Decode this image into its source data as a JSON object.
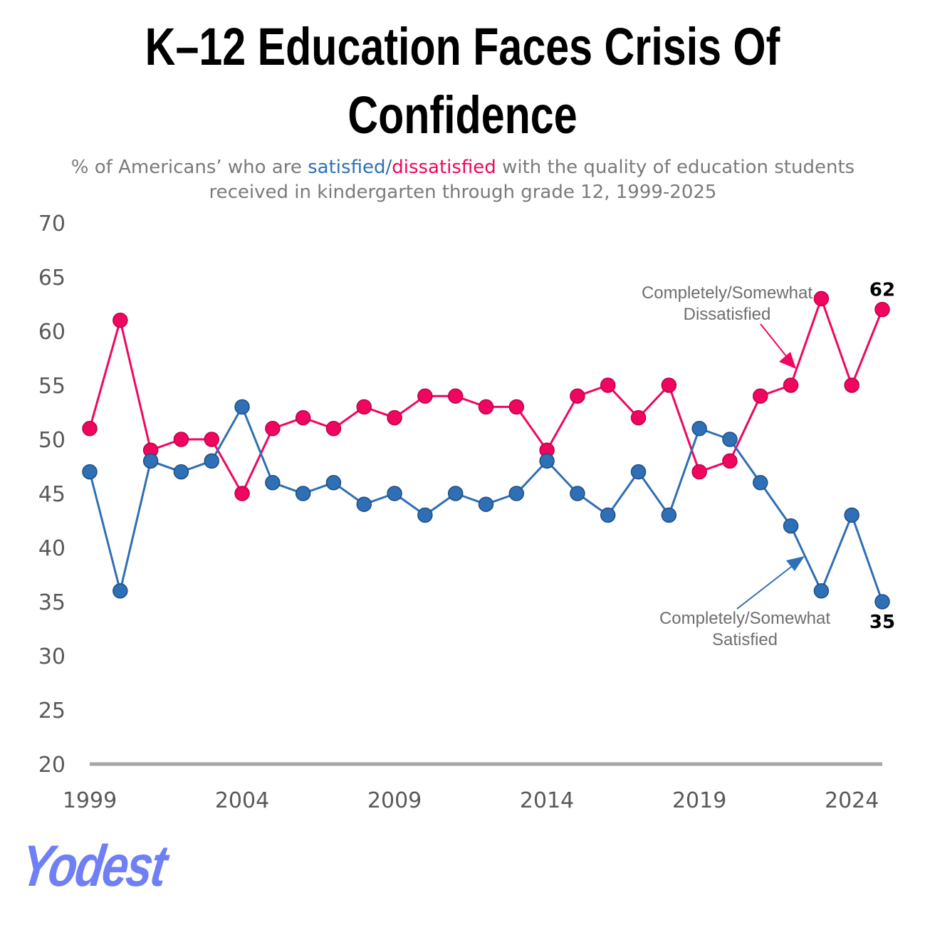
{
  "title": "K–12 Education Faces Crisis Of Confidence",
  "subtitle": {
    "prefix": "% of Americans’ who are ",
    "satisfied": "satisfied",
    "slash": "/",
    "dissatisfied": "dissatisfied",
    "suffix": " with the quality of education students received in kindergarten through grade 12, 1999-2025"
  },
  "logo": "Yodest",
  "colors": {
    "satisfied": "#2e6fb5",
    "dissatisfied": "#f0065f",
    "axis": "#a6a6a6"
  },
  "chart_data": {
    "type": "line",
    "x": [
      1999,
      2000,
      2001,
      2002,
      2003,
      2004,
      2005,
      2006,
      2007,
      2008,
      2009,
      2010,
      2011,
      2012,
      2013,
      2014,
      2015,
      2016,
      2017,
      2018,
      2019,
      2020,
      2021,
      2022,
      2023,
      2024,
      2025
    ],
    "series": [
      {
        "name": "Completely/Somewhat Dissatisfied",
        "color": "#f0065f",
        "values": [
          51,
          61,
          49,
          50,
          50,
          45,
          51,
          52,
          51,
          53,
          52,
          54,
          54,
          53,
          53,
          49,
          54,
          55,
          52,
          55,
          47,
          48,
          54,
          55,
          63,
          55,
          62
        ]
      },
      {
        "name": "Completely/Somewhat Satisfied",
        "color": "#2e6fb5",
        "values": [
          47,
          36,
          48,
          47,
          48,
          53,
          46,
          45,
          46,
          44,
          45,
          43,
          45,
          44,
          45,
          48,
          45,
          43,
          47,
          43,
          51,
          50,
          46,
          42,
          36,
          43,
          35
        ]
      }
    ],
    "ylim": [
      20,
      70
    ],
    "yticks": [
      20,
      25,
      30,
      35,
      40,
      45,
      50,
      55,
      60,
      65,
      70
    ],
    "xticks": [
      1999,
      2004,
      2009,
      2014,
      2019,
      2024
    ],
    "data_labels": {
      "dissatisfied_last": "62",
      "satisfied_last": "35"
    },
    "grid": false
  }
}
